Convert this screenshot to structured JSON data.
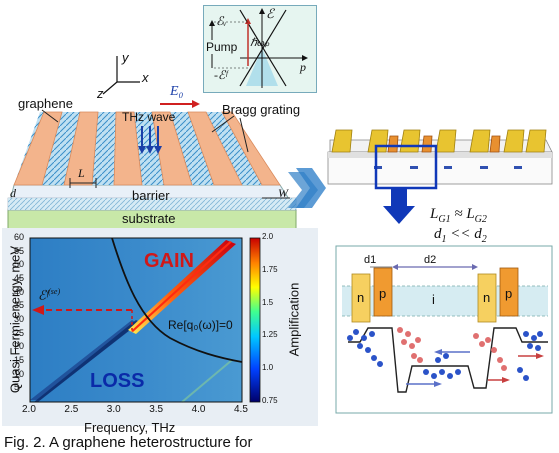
{
  "device_3d": {
    "axes": [
      "y",
      "x",
      "z"
    ],
    "field_label": "E₀",
    "labels": {
      "graphene": "graphene",
      "thz_wave": "THz wave",
      "bragg_grating": "Bragg grating",
      "barrier": "barrier",
      "substrate": "substrate",
      "d": "d",
      "L": "L",
      "W": "W"
    }
  },
  "band_inset": {
    "energy_axis": "ℰ",
    "momentum_axis": "p",
    "ev": "ℰᵥ",
    "pump": "Pump",
    "hw": "ℏωₚ",
    "ef": "-ℰᶠ"
  },
  "gain_map": {
    "gain_label": "GAIN",
    "loss_label": "LOSS",
    "curve_label": "Re[q₀(ω)]=0",
    "ef_label": "ℰᶠ",
    "ef_sup": "(se)",
    "ylabel": "Quasi Fermi energy, meV",
    "xlabel": "Frequency, THz",
    "colorbar_label": "Amplification",
    "x_ticks": [
      "2.0",
      "2.5",
      "3.0",
      "3.5",
      "4.0",
      "4.5"
    ],
    "y_ticks": [
      "60",
      "55",
      "50",
      "45",
      "40",
      "35",
      "30",
      "25",
      "20",
      "15",
      "10",
      "5"
    ],
    "cb_ticks": [
      "2.0",
      "1.75",
      "1.5",
      "1.25",
      "1.0",
      "0.75"
    ]
  },
  "right_panel": {
    "eq1": "Lₑ₁ ≈ Lₑ₂",
    "eq1_parts": {
      "a": "L",
      "a_sub": "G1",
      "mid": " ≈ ",
      "b": "L",
      "b_sub": "G2"
    },
    "eq2_parts": {
      "a": "d",
      "a_sub": "1",
      "mid": " << ",
      "b": "d",
      "b_sub": "2"
    },
    "d1": "d1",
    "d2": "d2",
    "regions": [
      "n",
      "p",
      "i",
      "n",
      "p"
    ]
  },
  "caption": "Fig. 2. A graphene heterostructure for"
}
